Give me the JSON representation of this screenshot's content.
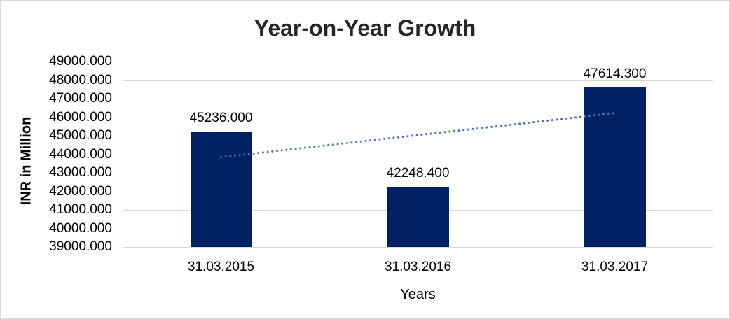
{
  "chart_data": {
    "type": "bar",
    "title": "Year-on-Year Growth",
    "categories": [
      "31.03.2015",
      "31.03.2016",
      "31.03.2017"
    ],
    "values": [
      45236.0,
      42248.4,
      47614.3
    ],
    "data_labels": [
      "45236.000",
      "42248.400",
      "47614.300"
    ],
    "xlabel": "Years",
    "ylabel": "INR in Million",
    "ylim": [
      39000,
      49000
    ],
    "y_tick_step": 1000,
    "y_tick_labels": [
      "39000.000",
      "40000.000",
      "41000.000",
      "42000.000",
      "43000.000",
      "44000.000",
      "45000.000",
      "46000.000",
      "47000.000",
      "48000.000",
      "49000.000"
    ],
    "grid": true,
    "legend_position": "none",
    "trendline": {
      "type": "linear",
      "style": "dotted",
      "applies_to": "values"
    },
    "colors": {
      "bar": "#002163",
      "trendline": "#4472C4",
      "gridline": "#D9D9D9",
      "chart_border": "#D9D9D9",
      "title_text": "#262626",
      "axis_text": "#000000",
      "background": "#FFFFFF"
    }
  }
}
